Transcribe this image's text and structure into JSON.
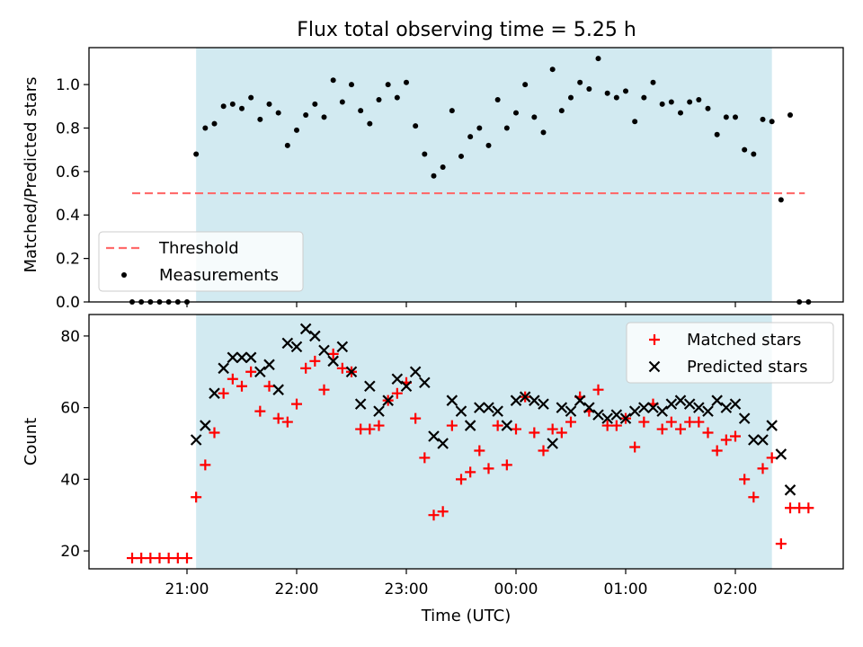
{
  "title": "Flux total observing time = 5.25 h",
  "colors": {
    "shade": "#add8e6",
    "threshold": "#ff6b6b",
    "matched": "#ff0000",
    "predicted": "#000000",
    "measure": "#000000"
  },
  "chart_data": [
    {
      "type": "scatter",
      "ylabel": "Matched/Predicted stars",
      "xlabel": "",
      "ylim": [
        0,
        1.17
      ],
      "yticks": [
        "0.0",
        "0.2",
        "0.4",
        "0.6",
        "0.8",
        "1.0"
      ],
      "yticks_values": [
        0,
        0.2,
        0.4,
        0.6,
        0.8,
        1.0
      ],
      "grid": false,
      "legend_position": "lower-left",
      "shaded_span": [
        "21:05",
        "02:20"
      ],
      "threshold": {
        "name": "Threshold",
        "y": 0.5,
        "x_range": [
          "20:30",
          "02:38"
        ]
      },
      "series": [
        {
          "name": "Measurements",
          "x": [
            "20:30",
            "20:35",
            "20:40",
            "20:45",
            "20:50",
            "20:55",
            "21:00",
            "21:05",
            "21:10",
            "21:15",
            "21:20",
            "21:25",
            "21:30",
            "21:35",
            "21:40",
            "21:45",
            "21:50",
            "21:55",
            "22:00",
            "22:05",
            "22:10",
            "22:15",
            "22:20",
            "22:25",
            "22:30",
            "22:35",
            "22:40",
            "22:45",
            "22:50",
            "22:55",
            "23:00",
            "23:05",
            "23:10",
            "23:15",
            "23:20",
            "23:25",
            "23:30",
            "23:35",
            "23:40",
            "23:45",
            "23:50",
            "23:55",
            "00:00",
            "00:05",
            "00:10",
            "00:15",
            "00:20",
            "00:25",
            "00:30",
            "00:35",
            "00:40",
            "00:45",
            "00:50",
            "00:55",
            "01:00",
            "01:05",
            "01:10",
            "01:15",
            "01:20",
            "01:25",
            "01:30",
            "01:35",
            "01:40",
            "01:45",
            "01:50",
            "01:55",
            "02:00",
            "02:05",
            "02:10",
            "02:15",
            "02:20",
            "02:25",
            "02:30",
            "02:35",
            "02:40"
          ],
          "y": [
            0,
            0,
            0,
            0,
            0,
            0,
            0,
            0.68,
            0.8,
            0.82,
            0.9,
            0.91,
            0.89,
            0.94,
            0.84,
            0.91,
            0.87,
            0.72,
            0.79,
            0.86,
            0.91,
            0.85,
            1.02,
            0.92,
            1.0,
            0.88,
            0.82,
            0.93,
            1.0,
            0.94,
            1.01,
            0.81,
            0.68,
            0.58,
            0.62,
            0.88,
            0.67,
            0.76,
            0.8,
            0.72,
            0.93,
            0.8,
            0.87,
            1.0,
            0.85,
            0.78,
            1.07,
            0.88,
            0.94,
            1.01,
            0.98,
            1.12,
            0.96,
            0.94,
            0.97,
            0.83,
            0.94,
            1.01,
            0.91,
            0.92,
            0.87,
            0.92,
            0.93,
            0.89,
            0.77,
            0.85,
            0.85,
            0.7,
            0.68,
            0.84,
            0.83,
            0.47,
            0.86,
            0,
            0
          ]
        }
      ]
    },
    {
      "type": "scatter",
      "ylabel": "Count",
      "xlabel": "Time (UTC)",
      "ylim": [
        15,
        86
      ],
      "yticks": [
        "20",
        "40",
        "60",
        "80"
      ],
      "yticks_values": [
        20,
        40,
        60,
        80
      ],
      "xticks": [
        "21:00",
        "22:00",
        "23:00",
        "00:00",
        "01:00",
        "02:00"
      ],
      "xticks_values": [
        "21:00",
        "22:00",
        "23:00",
        "00:00",
        "01:00",
        "02:00"
      ],
      "grid": false,
      "legend_position": "upper-right",
      "shaded_span": [
        "21:05",
        "02:20"
      ],
      "series": [
        {
          "name": "Matched stars",
          "marker": "+",
          "x": [
            "20:30",
            "20:35",
            "20:40",
            "20:45",
            "20:50",
            "20:55",
            "21:00",
            "21:05",
            "21:10",
            "21:15",
            "21:20",
            "21:25",
            "21:30",
            "21:35",
            "21:40",
            "21:45",
            "21:50",
            "21:55",
            "22:00",
            "22:05",
            "22:10",
            "22:15",
            "22:20",
            "22:25",
            "22:30",
            "22:35",
            "22:40",
            "22:45",
            "22:50",
            "22:55",
            "23:00",
            "23:05",
            "23:10",
            "23:15",
            "23:20",
            "23:25",
            "23:30",
            "23:35",
            "23:40",
            "23:45",
            "23:50",
            "23:55",
            "00:00",
            "00:05",
            "00:10",
            "00:15",
            "00:20",
            "00:25",
            "00:30",
            "00:35",
            "00:40",
            "00:45",
            "00:50",
            "00:55",
            "01:00",
            "01:05",
            "01:10",
            "01:15",
            "01:20",
            "01:25",
            "01:30",
            "01:35",
            "01:40",
            "01:45",
            "01:50",
            "01:55",
            "02:00",
            "02:05",
            "02:10",
            "02:15",
            "02:20",
            "02:25",
            "02:30",
            "02:35",
            "02:40"
          ],
          "y": [
            18,
            18,
            18,
            18,
            18,
            18,
            18,
            35,
            44,
            53,
            64,
            68,
            66,
            70,
            59,
            66,
            57,
            56,
            61,
            71,
            73,
            65,
            75,
            71,
            70,
            54,
            54,
            55,
            62,
            64,
            67,
            57,
            46,
            30,
            31,
            55,
            40,
            42,
            48,
            43,
            55,
            44,
            54,
            63,
            53,
            48,
            54,
            53,
            56,
            63,
            59,
            65,
            55,
            55,
            57,
            49,
            56,
            61,
            54,
            56,
            54,
            56,
            56,
            53,
            48,
            51,
            52,
            40,
            35,
            43,
            46,
            22,
            32,
            32,
            32
          ]
        },
        {
          "name": "Predicted stars",
          "marker": "x",
          "x": [
            "21:05",
            "21:10",
            "21:15",
            "21:20",
            "21:25",
            "21:30",
            "21:35",
            "21:40",
            "21:45",
            "21:50",
            "21:55",
            "22:00",
            "22:05",
            "22:10",
            "22:15",
            "22:20",
            "22:25",
            "22:30",
            "22:35",
            "22:40",
            "22:45",
            "22:50",
            "22:55",
            "23:00",
            "23:05",
            "23:10",
            "23:15",
            "23:20",
            "23:25",
            "23:30",
            "23:35",
            "23:40",
            "23:45",
            "23:50",
            "23:55",
            "00:00",
            "00:05",
            "00:10",
            "00:15",
            "00:20",
            "00:25",
            "00:30",
            "00:35",
            "00:40",
            "00:45",
            "00:50",
            "00:55",
            "01:00",
            "01:05",
            "01:10",
            "01:15",
            "01:20",
            "01:25",
            "01:30",
            "01:35",
            "01:40",
            "01:45",
            "01:50",
            "01:55",
            "02:00",
            "02:05",
            "02:10",
            "02:15",
            "02:20",
            "02:25",
            "02:30"
          ],
          "y": [
            51,
            55,
            64,
            71,
            74,
            74,
            74,
            70,
            72,
            65,
            78,
            77,
            82,
            80,
            76,
            73,
            77,
            70,
            61,
            66,
            59,
            62,
            68,
            66,
            70,
            67,
            52,
            50,
            62,
            59,
            55,
            60,
            60,
            59,
            55,
            62,
            63,
            62,
            61,
            50,
            60,
            59,
            62,
            60,
            58,
            57,
            58,
            57,
            59,
            60,
            60,
            59,
            61,
            62,
            61,
            60,
            59,
            62,
            60,
            61,
            57,
            51,
            51,
            55,
            47,
            37
          ]
        }
      ]
    }
  ]
}
